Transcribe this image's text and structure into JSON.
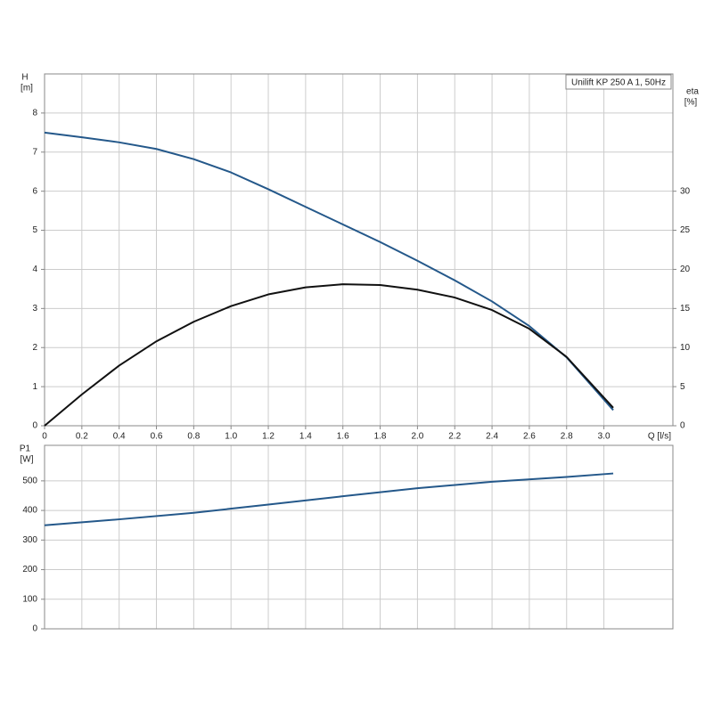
{
  "chart_data": [
    {
      "type": "line",
      "annotation": "Unilift KP 250 A 1, 50Hz",
      "y_label": "H",
      "y_unit": "[m]",
      "y2_label": "eta",
      "y2_unit": "[%]",
      "x_label": "Q [l/s]",
      "x": [
        0,
        0.2,
        0.4,
        0.6,
        0.8,
        1.0,
        1.2,
        1.4,
        1.6,
        1.8,
        2.0,
        2.2,
        2.4,
        2.6,
        2.8,
        3.05
      ],
      "series": [
        {
          "color": "#24588a",
          "values": [
            7.5,
            7.38,
            7.25,
            7.08,
            6.82,
            6.48,
            6.05,
            5.6,
            5.15,
            4.7,
            4.22,
            3.72,
            3.18,
            2.55,
            1.75,
            0.4
          ]
        },
        {
          "color": "#111111",
          "axis": "y2",
          "values": [
            0,
            4,
            7.7,
            10.8,
            13.3,
            15.3,
            16.8,
            17.7,
            18.1,
            18.0,
            17.4,
            16.4,
            14.8,
            12.4,
            8.8,
            2.3
          ]
        }
      ],
      "xlim": [
        0,
        3.37
      ],
      "xticks": [
        0,
        0.2,
        0.4,
        0.6,
        0.8,
        {
          "value": 1,
          "label": "1.0"
        },
        1.2,
        1.4,
        1.6,
        1.8,
        {
          "value": 2,
          "label": "2.0"
        },
        2.2,
        2.4,
        2.6,
        2.8,
        {
          "value": 3,
          "label": "3.0"
        }
      ],
      "ylim": [
        0,
        9
      ],
      "yticks": [
        0,
        1,
        2,
        3,
        4,
        5,
        6,
        7,
        8
      ],
      "y2lim": [
        0,
        45
      ],
      "y2ticks": [
        0,
        5,
        10,
        15,
        20,
        25,
        30
      ],
      "grid": true
    },
    {
      "type": "line",
      "y_label": "P1",
      "y_unit": "[W]",
      "x": [
        0,
        0.4,
        0.8,
        1.2,
        1.6,
        2.0,
        2.4,
        2.8,
        3.05
      ],
      "series": [
        {
          "color": "#24588a",
          "values": [
            350,
            370,
            392,
            420,
            448,
            475,
            497,
            513,
            525
          ]
        }
      ],
      "xlim": [
        0,
        3.37
      ],
      "ylim": [
        0,
        620
      ],
      "yticks": [
        0,
        100,
        200,
        300,
        400,
        500
      ],
      "grid": true
    }
  ]
}
